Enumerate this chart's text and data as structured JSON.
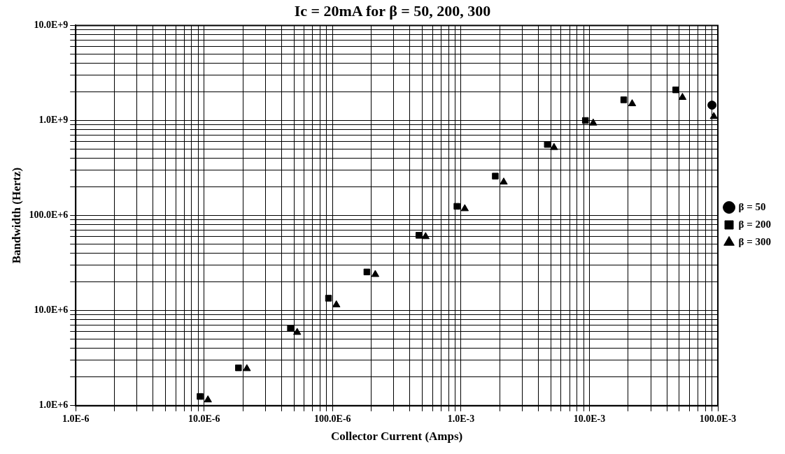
{
  "chart_data": {
    "type": "scatter",
    "title": "Ic = 20mA for β = 50, 200, 300",
    "xlabel": "Collector Current (Amps)",
    "ylabel": "Bandwidth (Hertz)",
    "log": "xy",
    "grid": true,
    "legend": "right",
    "xlim": [
      1e-06,
      0.1
    ],
    "xticks": [
      {
        "value": 1e-06,
        "label": "1.0E-6"
      },
      {
        "value": 2e-06,
        "label": null
      },
      {
        "value": 3e-06,
        "label": null
      },
      {
        "value": 4e-06,
        "label": null
      },
      {
        "value": 5e-06,
        "label": null
      },
      {
        "value": 6e-06,
        "label": null
      },
      {
        "value": 7e-06,
        "label": null
      },
      {
        "value": 8e-06,
        "label": null
      },
      {
        "value": 9e-06,
        "label": null
      },
      {
        "value": 1e-05,
        "label": "10.0E-6"
      },
      {
        "value": 2e-05,
        "label": null
      },
      {
        "value": 3e-05,
        "label": null
      },
      {
        "value": 4e-05,
        "label": null
      },
      {
        "value": 5e-05,
        "label": null
      },
      {
        "value": 6e-05,
        "label": null
      },
      {
        "value": 7e-05,
        "label": null
      },
      {
        "value": 8e-05,
        "label": null
      },
      {
        "value": 9e-05,
        "label": null
      },
      {
        "value": 0.0001,
        "label": "100.0E-6"
      },
      {
        "value": 0.0002,
        "label": null
      },
      {
        "value": 0.0003,
        "label": null
      },
      {
        "value": 0.0004,
        "label": null
      },
      {
        "value": 0.0005,
        "label": null
      },
      {
        "value": 0.0006,
        "label": null
      },
      {
        "value": 0.0007,
        "label": null
      },
      {
        "value": 0.0008,
        "label": null
      },
      {
        "value": 0.0009,
        "label": null
      },
      {
        "value": 0.001,
        "label": "1.0E-3"
      },
      {
        "value": 0.002,
        "label": null
      },
      {
        "value": 0.003,
        "label": null
      },
      {
        "value": 0.004,
        "label": null
      },
      {
        "value": 0.005,
        "label": null
      },
      {
        "value": 0.006,
        "label": null
      },
      {
        "value": 0.007,
        "label": null
      },
      {
        "value": 0.008,
        "label": null
      },
      {
        "value": 0.009,
        "label": null
      },
      {
        "value": 0.01,
        "label": "10.0E-3"
      },
      {
        "value": 0.02,
        "label": null
      },
      {
        "value": 0.03,
        "label": null
      },
      {
        "value": 0.04,
        "label": null
      },
      {
        "value": 0.05,
        "label": null
      },
      {
        "value": 0.06,
        "label": null
      },
      {
        "value": 0.07,
        "label": null
      },
      {
        "value": 0.08,
        "label": null
      },
      {
        "value": 0.09,
        "label": null
      },
      {
        "value": 0.1,
        "label": "100.0E-3"
      }
    ],
    "ylim": [
      1000000.0,
      10000000000.0
    ],
    "yticks": [
      {
        "value": 1000000.0,
        "label": "1.0E+6"
      },
      {
        "value": 2000000.0,
        "label": null
      },
      {
        "value": 3000000.0,
        "label": null
      },
      {
        "value": 4000000.0,
        "label": null
      },
      {
        "value": 5000000.0,
        "label": null
      },
      {
        "value": 6000000.0,
        "label": null
      },
      {
        "value": 7000000.0,
        "label": null
      },
      {
        "value": 8000000.0,
        "label": null
      },
      {
        "value": 9000000.0,
        "label": null
      },
      {
        "value": 10000000.0,
        "label": "10.0E+6"
      },
      {
        "value": 20000000.0,
        "label": null
      },
      {
        "value": 30000000.0,
        "label": null
      },
      {
        "value": 40000000.0,
        "label": null
      },
      {
        "value": 50000000.0,
        "label": null
      },
      {
        "value": 60000000.0,
        "label": null
      },
      {
        "value": 70000000.0,
        "label": null
      },
      {
        "value": 80000000.0,
        "label": null
      },
      {
        "value": 90000000.0,
        "label": null
      },
      {
        "value": 100000000.0,
        "label": "100.0E+6"
      },
      {
        "value": 200000000.0,
        "label": null
      },
      {
        "value": 300000000.0,
        "label": null
      },
      {
        "value": 400000000.0,
        "label": null
      },
      {
        "value": 500000000.0,
        "label": null
      },
      {
        "value": 600000000.0,
        "label": null
      },
      {
        "value": 700000000.0,
        "label": null
      },
      {
        "value": 800000000.0,
        "label": null
      },
      {
        "value": 900000000.0,
        "label": null
      },
      {
        "value": 1000000000.0,
        "label": "1.0E+9"
      },
      {
        "value": 2000000000.0,
        "label": null
      },
      {
        "value": 3000000000.0,
        "label": null
      },
      {
        "value": 4000000000.0,
        "label": null
      },
      {
        "value": 5000000000.0,
        "label": null
      },
      {
        "value": 6000000000.0,
        "label": null
      },
      {
        "value": 7000000000.0,
        "label": null
      },
      {
        "value": 8000000000.0,
        "label": null
      },
      {
        "value": 9000000000.0,
        "label": null
      },
      {
        "value": 10000000000.0,
        "label": "10.0E+9"
      }
    ],
    "series": [
      {
        "name": "β = 50",
        "color": "#000000",
        "marker": "circle",
        "x": [
          0.09
        ],
        "values": [
          1450000000.0
        ]
      },
      {
        "name": "β = 200",
        "color": "#000000",
        "marker": "square",
        "x": [
          9.3e-06,
          1.85e-05,
          4.7e-05,
          9.3e-05,
          0.000185,
          0.00047,
          0.00093,
          0.00185,
          0.0047,
          0.0093,
          0.0185,
          0.047
        ],
        "values": [
          1250000.0,
          2500000.0,
          6500000.0,
          13500000.0,
          25500000.0,
          62000000.0,
          125000000.0,
          260000000.0,
          560000000.0,
          1000000000.0,
          1650000000.0,
          2100000000.0
        ]
      },
      {
        "name": "β = 300",
        "color": "#000000",
        "marker": "triangle",
        "x": [
          1.07e-05,
          2.15e-05,
          5.3e-05,
          0.000107,
          0.000215,
          0.00053,
          0.00107,
          0.00215,
          0.0053,
          0.0107,
          0.0215,
          0.053,
          0.093
        ],
        "values": [
          1150000.0,
          2450000.0,
          5900000.0,
          11500000.0,
          24000000.0,
          60000000.0,
          118000000.0,
          225000000.0,
          520000000.0,
          940000000.0,
          1500000000.0,
          1750000000.0,
          1100000000.0
        ]
      }
    ]
  }
}
